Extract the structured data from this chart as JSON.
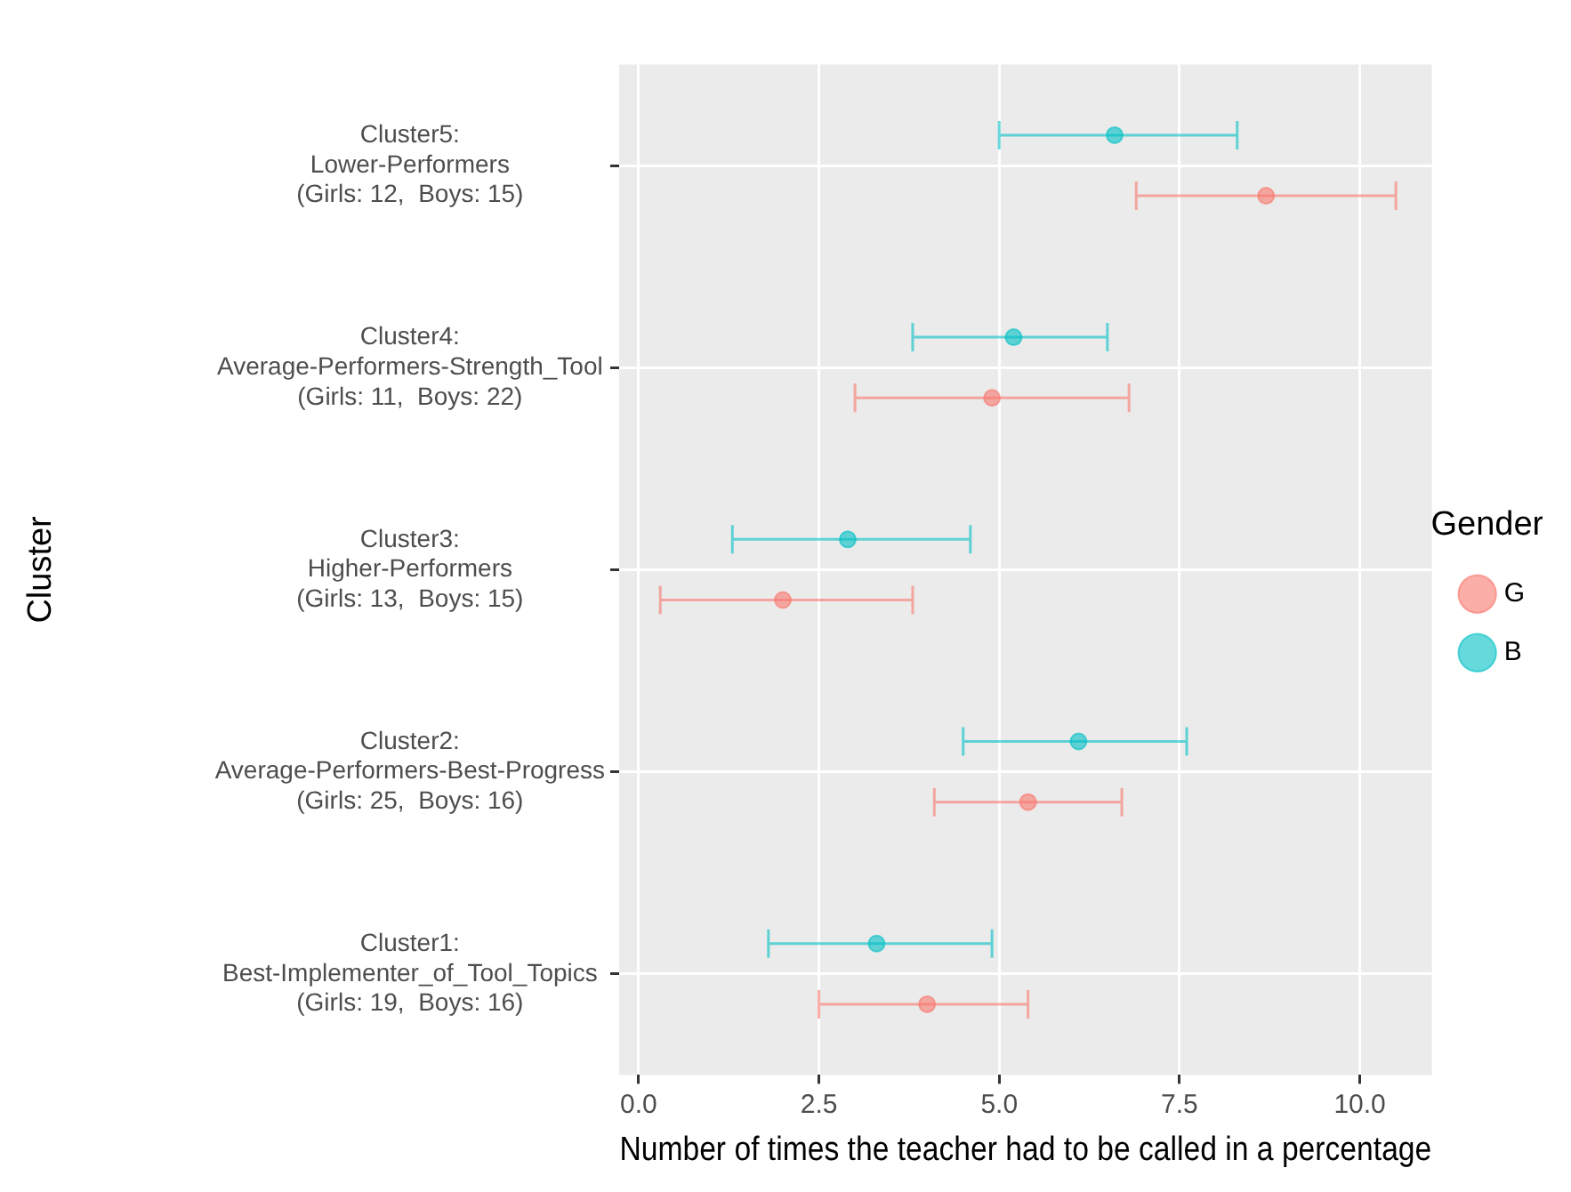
{
  "chart_data": {
    "type": "scatter",
    "orientation": "horizontal",
    "xlabel": "Number of times the teacher had to be called in a percentage",
    "ylabel": "Cluster",
    "legend_title": "Gender",
    "legend": "right",
    "grid": true,
    "marker": "circle",
    "categories": [
      "Cluster5:\nLower-Performers\n(Girls: 12,  Boys: 15)",
      "Cluster4:\nAverage-Performers-Strength_Tool\n(Girls: 11,  Boys: 22)",
      "Cluster3:\nHigher-Performers\n(Girls: 13,  Boys: 15)",
      "Cluster2:\nAverage-Performers-Best-Progress\n(Girls: 25,  Boys: 16)",
      "Cluster1:\nBest-Implementer_of_Tool_Topics\n(Girls: 19,  Boys: 16)"
    ],
    "series": [
      {
        "name": "G",
        "color": "#f8766d",
        "values": [
          8.7,
          4.9,
          2.0,
          5.4,
          4.0
        ],
        "errors": [
          [
            6.9,
            10.5
          ],
          [
            3.0,
            6.8
          ],
          [
            0.3,
            3.8
          ],
          [
            4.1,
            6.7
          ],
          [
            2.5,
            5.4
          ]
        ]
      },
      {
        "name": "B",
        "color": "#00bfc4",
        "values": [
          6.6,
          5.2,
          2.9,
          6.1,
          3.3
        ],
        "errors": [
          [
            5.0,
            8.3
          ],
          [
            3.8,
            6.5
          ],
          [
            1.3,
            4.6
          ],
          [
            4.5,
            7.6
          ],
          [
            1.8,
            4.9
          ]
        ]
      }
    ],
    "xlim": [
      -0.27,
      11.0
    ],
    "xticks": [
      {
        "value": 0,
        "label": "0.0"
      },
      {
        "value": 2.5,
        "label": "2.5"
      },
      {
        "value": 5,
        "label": "5.0"
      },
      {
        "value": 7.5,
        "label": "7.5"
      },
      {
        "value": 10,
        "label": "10.0"
      }
    ]
  }
}
